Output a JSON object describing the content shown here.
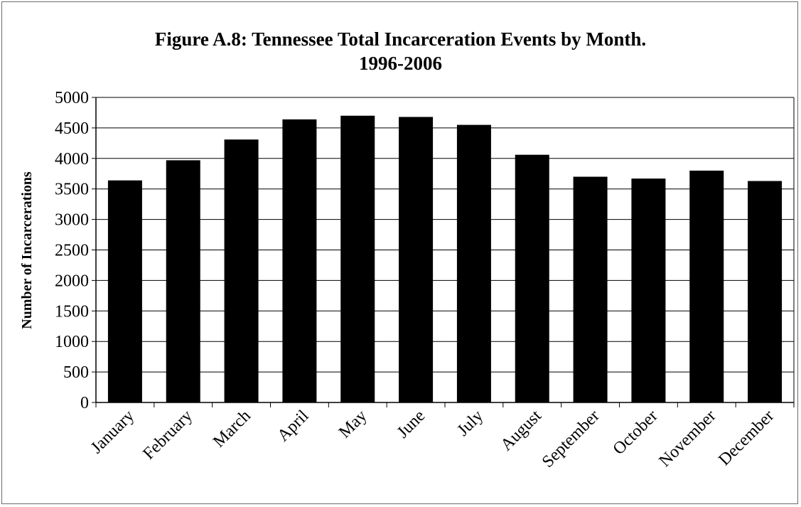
{
  "chart_data": {
    "type": "bar",
    "title": "Figure A.8:  Tennessee Total Incarceration Events by Month.",
    "subtitle": "1996-2006",
    "xlabel": "",
    "ylabel": "Number of Incarcerations",
    "ylim": [
      0,
      5000
    ],
    "yticks": [
      0,
      500,
      1000,
      1500,
      2000,
      2500,
      3000,
      3500,
      4000,
      4500,
      5000
    ],
    "grid": true,
    "legend": "none",
    "categories": [
      "January",
      "February",
      "March",
      "April",
      "May",
      "June",
      "July",
      "August",
      "September",
      "October",
      "November",
      "December"
    ],
    "values": [
      3640,
      3970,
      4310,
      4640,
      4700,
      4680,
      4550,
      4060,
      3700,
      3670,
      3800,
      3630
    ],
    "bar_color": "#000000"
  }
}
